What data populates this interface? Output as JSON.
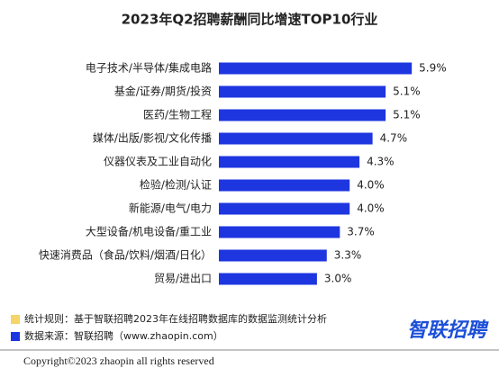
{
  "chart_data": {
    "type": "bar",
    "orientation": "horizontal",
    "title": "2023年Q2招聘薪酬同比增速TOP10行业",
    "categories": [
      "电子技术/半导体/集成电路",
      "基金/证券/期货/投资",
      "医药/生物工程",
      "媒体/出版/影视/文化传播",
      "仪器仪表及工业自动化",
      "检验/检测/认证",
      "新能源/电气/电力",
      "大型设备/机电设备/重工业",
      "快速消费品（食品/饮料/烟酒/日化）",
      "贸易/进出口"
    ],
    "values": [
      5.9,
      5.1,
      5.1,
      4.7,
      4.3,
      4.0,
      4.0,
      3.7,
      3.3,
      3.0
    ],
    "value_labels": [
      "5.9%",
      "5.1%",
      "5.1%",
      "4.7%",
      "4.3%",
      "4.0%",
      "4.0%",
      "3.7%",
      "3.3%",
      "3.0%"
    ],
    "color": "#1d36e0"
  },
  "footer": {
    "notes": [
      {
        "text": "统计规则：基于智联招聘2023年在线招聘数据库的数据监测统计分析",
        "color": "#f5d46a"
      },
      {
        "text": "数据来源：智联招聘（www.zhaopin.com）",
        "color": "#1d36e0"
      }
    ],
    "logo": "智联招聘",
    "copyright": "Copyright©2023 zhaopin all rights reserved"
  }
}
